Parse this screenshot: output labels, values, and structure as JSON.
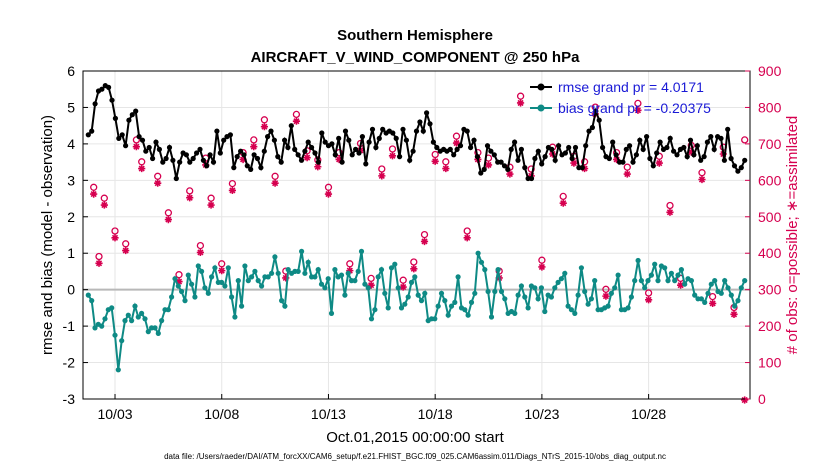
{
  "chart_data": {
    "type": "line",
    "title": "Southern Hemisphere",
    "subtitle": "AIRCRAFT_V_WIND_COMPONENT @ 250 hPa",
    "xlabel": "Oct.01,2015 00:00:00 start",
    "ylabel": "rmse and bias (model - observation)",
    "ylabel_right": "# of obs: o=possible; ∗=assimilated",
    "x_tick_labels": [
      "10/03",
      "10/08",
      "10/13",
      "10/18",
      "10/23",
      "10/28"
    ],
    "x_tick_days": [
      2,
      7,
      12,
      17,
      22,
      27
    ],
    "xlim": [
      0.5,
      31.75
    ],
    "ylim": [
      -3,
      6
    ],
    "y_ticks": [
      -3,
      -2,
      -1,
      0,
      1,
      2,
      3,
      4,
      5,
      6
    ],
    "ylim_right": [
      0,
      900
    ],
    "y_ticks_right": [
      0,
      100,
      200,
      300,
      400,
      500,
      600,
      700,
      800,
      900
    ],
    "grid": true,
    "legend_position": "top-right",
    "footnote": "data file: /Users/raeder/DAI/ATM_forcXX/CAM6_setup/f.e21.FHIST_BGC.f09_025.CAM6assim.011/Diags_NTrS_2015-10/obs_diag_output.nc",
    "series": [
      {
        "name": "rmse grand pr = 4.0171",
        "color": "#000000",
        "marker": "circle",
        "values": [
          4.25,
          4.35,
          5.1,
          5.45,
          5.5,
          5.6,
          5.55,
          5.2,
          4.7,
          4.15,
          4.25,
          3.95,
          4.65,
          4.8,
          4.9,
          4.2,
          4.1,
          3.8,
          3.9,
          3.6,
          4.05,
          3.85,
          3.5,
          3.6,
          3.9,
          3.55,
          3.05,
          3.5,
          3.75,
          3.7,
          3.5,
          3.6,
          3.75,
          3.85,
          3.55,
          3.4,
          3.7,
          3.5,
          4.35,
          3.75,
          4.1,
          4.2,
          4.25,
          3.35,
          3.65,
          3.8,
          3.7,
          3.4,
          3.3,
          3.7,
          3.6,
          3.35,
          3.8,
          4.2,
          4.35,
          4.1,
          3.65,
          3.5,
          4.1,
          3.9,
          4.5,
          3.85,
          3.7,
          3.55,
          3.8,
          4.05,
          3.9,
          3.75,
          3.5,
          4.3,
          4.05,
          3.95,
          4.0,
          3.7,
          4.15,
          3.5,
          4.35,
          4.1,
          3.7,
          3.85,
          3.75,
          4.2,
          3.45,
          4.05,
          4.4,
          3.9,
          4.15,
          4.4,
          4.3,
          4.35,
          4.3,
          4.15,
          3.65,
          4.4,
          4.1,
          3.55,
          3.8,
          4.35,
          4.6,
          4.35,
          4.85,
          4.55,
          4.05,
          3.9,
          3.8,
          3.85,
          3.8,
          3.85,
          3.7,
          3.85,
          3.95,
          4.4,
          4.35,
          3.9,
          4.1,
          3.65,
          3.2,
          3.3,
          3.95,
          3.8,
          3.7,
          3.5,
          3.5,
          3.4,
          3.3,
          3.85,
          4.05,
          3.55,
          3.85,
          3.35,
          3.05,
          3.05,
          3.6,
          3.8,
          3.45,
          3.65,
          3.9,
          3.85,
          3.55,
          3.95,
          3.7,
          3.75,
          3.9,
          3.6,
          3.9,
          3.35,
          3.35,
          3.95,
          4.35,
          4.45,
          4.9,
          4.65,
          3.9,
          3.65,
          3.6,
          4.05,
          3.7,
          3.5,
          3.5,
          3.85,
          3.95,
          3.5,
          3.7,
          4.1,
          3.85,
          4.2,
          3.6,
          3.4,
          3.75,
          4.05,
          3.85,
          3.9,
          4.15,
          3.8,
          3.7,
          3.85,
          3.9,
          3.65,
          4.1,
          3.7,
          3.95,
          3.55,
          3.65,
          4.05,
          4.2,
          3.85,
          4.2,
          4.15,
          3.55,
          4.4,
          3.6,
          3.4,
          3.25,
          3.35,
          3.55
        ]
      },
      {
        "name": "bias grand pr = -0.20375",
        "color": "#0e8a85",
        "marker": "circle",
        "values": [
          -0.15,
          -0.3,
          -1.05,
          -0.95,
          -1.0,
          -0.8,
          -0.55,
          -0.5,
          -1.25,
          -2.2,
          -1.4,
          -0.85,
          -0.7,
          -0.85,
          -0.45,
          -0.75,
          -0.65,
          -0.8,
          -1.15,
          -1.05,
          -1.05,
          -1.2,
          -0.85,
          -0.55,
          -0.55,
          -0.2,
          0.3,
          0.1,
          -0.05,
          -0.3,
          0.4,
          0.15,
          -0.2,
          0.65,
          0.5,
          0.05,
          -0.1,
          0.35,
          0.6,
          0.2,
          0.2,
          0.1,
          0.6,
          -0.2,
          -0.75,
          0.25,
          -0.45,
          0.65,
          0.25,
          0.35,
          0.5,
          0.25,
          0.1,
          0.35,
          0.35,
          0.45,
          0.9,
          0.45,
          -0.3,
          -0.45,
          0.55,
          0.45,
          0.5,
          0.5,
          1.05,
          0.45,
          0.75,
          0.35,
          0.35,
          0.55,
          0.15,
          0.05,
          0.3,
          -0.65,
          0.55,
          0.35,
          0.4,
          -0.15,
          0.45,
          0.25,
          0.25,
          0.5,
          1.05,
          0.15,
          0.05,
          -0.8,
          -0.55,
          0.35,
          0.55,
          -0.1,
          -0.5,
          0.6,
          0.7,
          0.05,
          -0.5,
          -0.4,
          -0.2,
          0.2,
          0.35,
          -0.15,
          -0.3,
          -0.1,
          -0.85,
          -0.8,
          -0.8,
          -0.45,
          -0.1,
          -0.3,
          -0.7,
          -0.45,
          -0.35,
          0.35,
          -0.5,
          -0.55,
          -0.7,
          -0.35,
          -0.1,
          1.0,
          0.75,
          0.55,
          -0.05,
          -0.75,
          -0.05,
          0.55,
          -0.05,
          -0.25,
          -0.65,
          -0.6,
          -0.65,
          -0.15,
          0.1,
          -0.2,
          -0.5,
          0.1,
          0.05,
          -0.25,
          0.05,
          -0.6,
          -0.15,
          -0.2,
          0.05,
          0.2,
          0.3,
          0.45,
          -0.45,
          -0.55,
          -0.65,
          -0.15,
          0.6,
          -0.05,
          -0.4,
          -0.25,
          0.25,
          -0.55,
          -0.55,
          -0.5,
          -0.45,
          -0.1,
          0.05,
          0.4,
          -0.55,
          -0.55,
          -0.5,
          -0.2,
          0.25,
          0.8,
          0.25,
          0.05,
          0.25,
          0.4,
          0.7,
          0.25,
          0.65,
          0.6,
          0.25,
          0.45,
          0.25,
          0.4,
          0.55,
          0.15,
          0.3,
          0.25,
          -0.15,
          -0.25,
          -0.25,
          -0.35,
          -0.1,
          0.15,
          0.25,
          -0.05,
          -0.1,
          0.25,
          0.05,
          -0.15,
          -0.45,
          -0.3,
          0.05,
          0.25
        ]
      },
      {
        "name": "# obs possible",
        "axis": "right",
        "color": "#d6004f",
        "marker": "circle-open",
        "x": [
          1.0,
          1.25,
          1.5,
          2.0,
          2.5,
          3.0,
          3.25,
          4.0,
          4.5,
          5.0,
          5.5,
          6.0,
          6.25,
          6.5,
          7.0,
          7.5,
          8.0,
          8.5,
          9.0,
          9.5,
          10.0,
          10.5,
          11.0,
          11.5,
          12.0,
          12.5,
          13.0,
          13.5,
          14.0,
          14.5,
          15.0,
          15.5,
          16.0,
          16.5,
          17.0,
          17.5,
          18.0,
          18.5,
          19.0,
          19.5,
          20.0,
          20.5,
          21.0,
          21.5,
          22.0,
          22.5,
          23.0,
          23.5,
          24.0,
          24.5,
          25.0,
          25.5,
          26.0,
          26.5,
          27.0,
          27.5,
          28.0,
          28.5,
          29.0,
          29.5,
          30.0,
          30.5,
          31.0,
          31.5
        ],
        "y": [
          570,
          380,
          540,
          450,
          415,
          700,
          640,
          600,
          500,
          330,
          560,
          410,
          650,
          540,
          360,
          580,
          665,
          700,
          755,
          600,
          340,
          770,
          670,
          645,
          570,
          665,
          360,
          690,
          320,
          620,
          675,
          315,
          365,
          440,
          660,
          640,
          710,
          450,
          665,
          650,
          340,
          625,
          820,
          620,
          370,
          680,
          545,
          655,
          640,
          790,
          290,
          665,
          625,
          800,
          280,
          655,
          520,
          320,
          685,
          610,
          270,
          680,
          240,
          700
        ]
      },
      {
        "name": "# obs assimilated",
        "axis": "right",
        "color": "#d6004f",
        "marker": "star",
        "x": [
          1.0,
          1.25,
          1.5,
          2.0,
          2.5,
          3.0,
          3.25,
          4.0,
          4.5,
          5.0,
          5.5,
          6.0,
          6.25,
          6.5,
          7.0,
          7.5,
          8.0,
          8.5,
          9.0,
          9.5,
          10.0,
          10.5,
          11.0,
          11.5,
          12.0,
          12.5,
          13.0,
          13.5,
          14.0,
          14.5,
          15.0,
          15.5,
          16.0,
          16.5,
          17.0,
          17.5,
          18.0,
          18.5,
          19.0,
          19.5,
          20.0,
          20.5,
          21.0,
          21.5,
          22.0,
          22.5,
          23.0,
          23.5,
          24.0,
          24.5,
          25.0,
          25.5,
          26.0,
          26.5,
          27.0,
          27.5,
          28.0,
          28.5,
          29.0,
          29.5,
          30.0,
          30.5,
          31.0,
          31.5
        ],
        "y": [
          565,
          375,
          535,
          445,
          410,
          695,
          635,
          595,
          495,
          325,
          555,
          405,
          645,
          535,
          355,
          575,
          660,
          695,
          750,
          595,
          335,
          765,
          665,
          640,
          565,
          660,
          355,
          685,
          315,
          615,
          670,
          310,
          360,
          435,
          655,
          635,
          705,
          445,
          660,
          645,
          335,
          620,
          815,
          615,
          365,
          675,
          540,
          650,
          635,
          785,
          285,
          660,
          620,
          795,
          275,
          650,
          515,
          315,
          680,
          605,
          265,
          675,
          235,
          0
        ]
      }
    ]
  }
}
